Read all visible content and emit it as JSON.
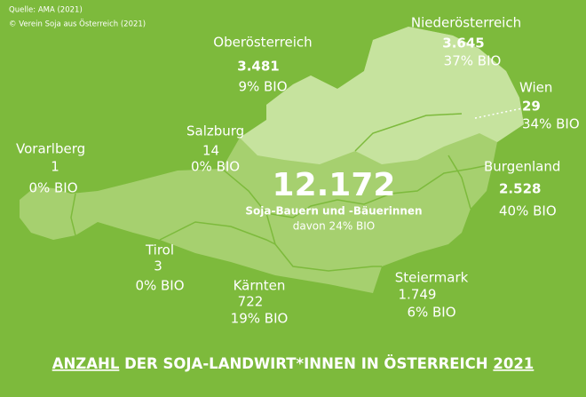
{
  "source": [
    "Quelle: AMA (2021)",
    "© Verein Soja aus Österreich (2021)"
  ],
  "total": {
    "value": "12.172",
    "label": "Soja-Bauern und -Bäuerinnen",
    "bio": "davon 24% BIO"
  },
  "regions": [
    {
      "name": "Niederösterreich",
      "count": "3.645",
      "bio": "37% BIO"
    },
    {
      "name": "Oberösterreich",
      "count": "3.481",
      "bio": "9% BIO"
    },
    {
      "name": "Wien",
      "count": "29",
      "bio": "34% BIO"
    },
    {
      "name": "Salzburg",
      "count": "14",
      "bio": "0% BIO"
    },
    {
      "name": "Vorarlberg",
      "count": "1",
      "bio": "0% BIO"
    },
    {
      "name": "Burgenland",
      "count": "2.528",
      "bio": "40% BIO"
    },
    {
      "name": "Tirol",
      "count": "3",
      "bio": "0% BIO"
    },
    {
      "name": "Kärnten",
      "count": "722",
      "bio": "19% BIO"
    },
    {
      "name": "Steiermark",
      "count": "1.749",
      "bio": "6% BIO"
    }
  ],
  "footer": [
    "ANZAHL",
    "DER SOJA-LANDWIRT*INNEN IN ÖSTERREICH",
    "2021"
  ]
}
